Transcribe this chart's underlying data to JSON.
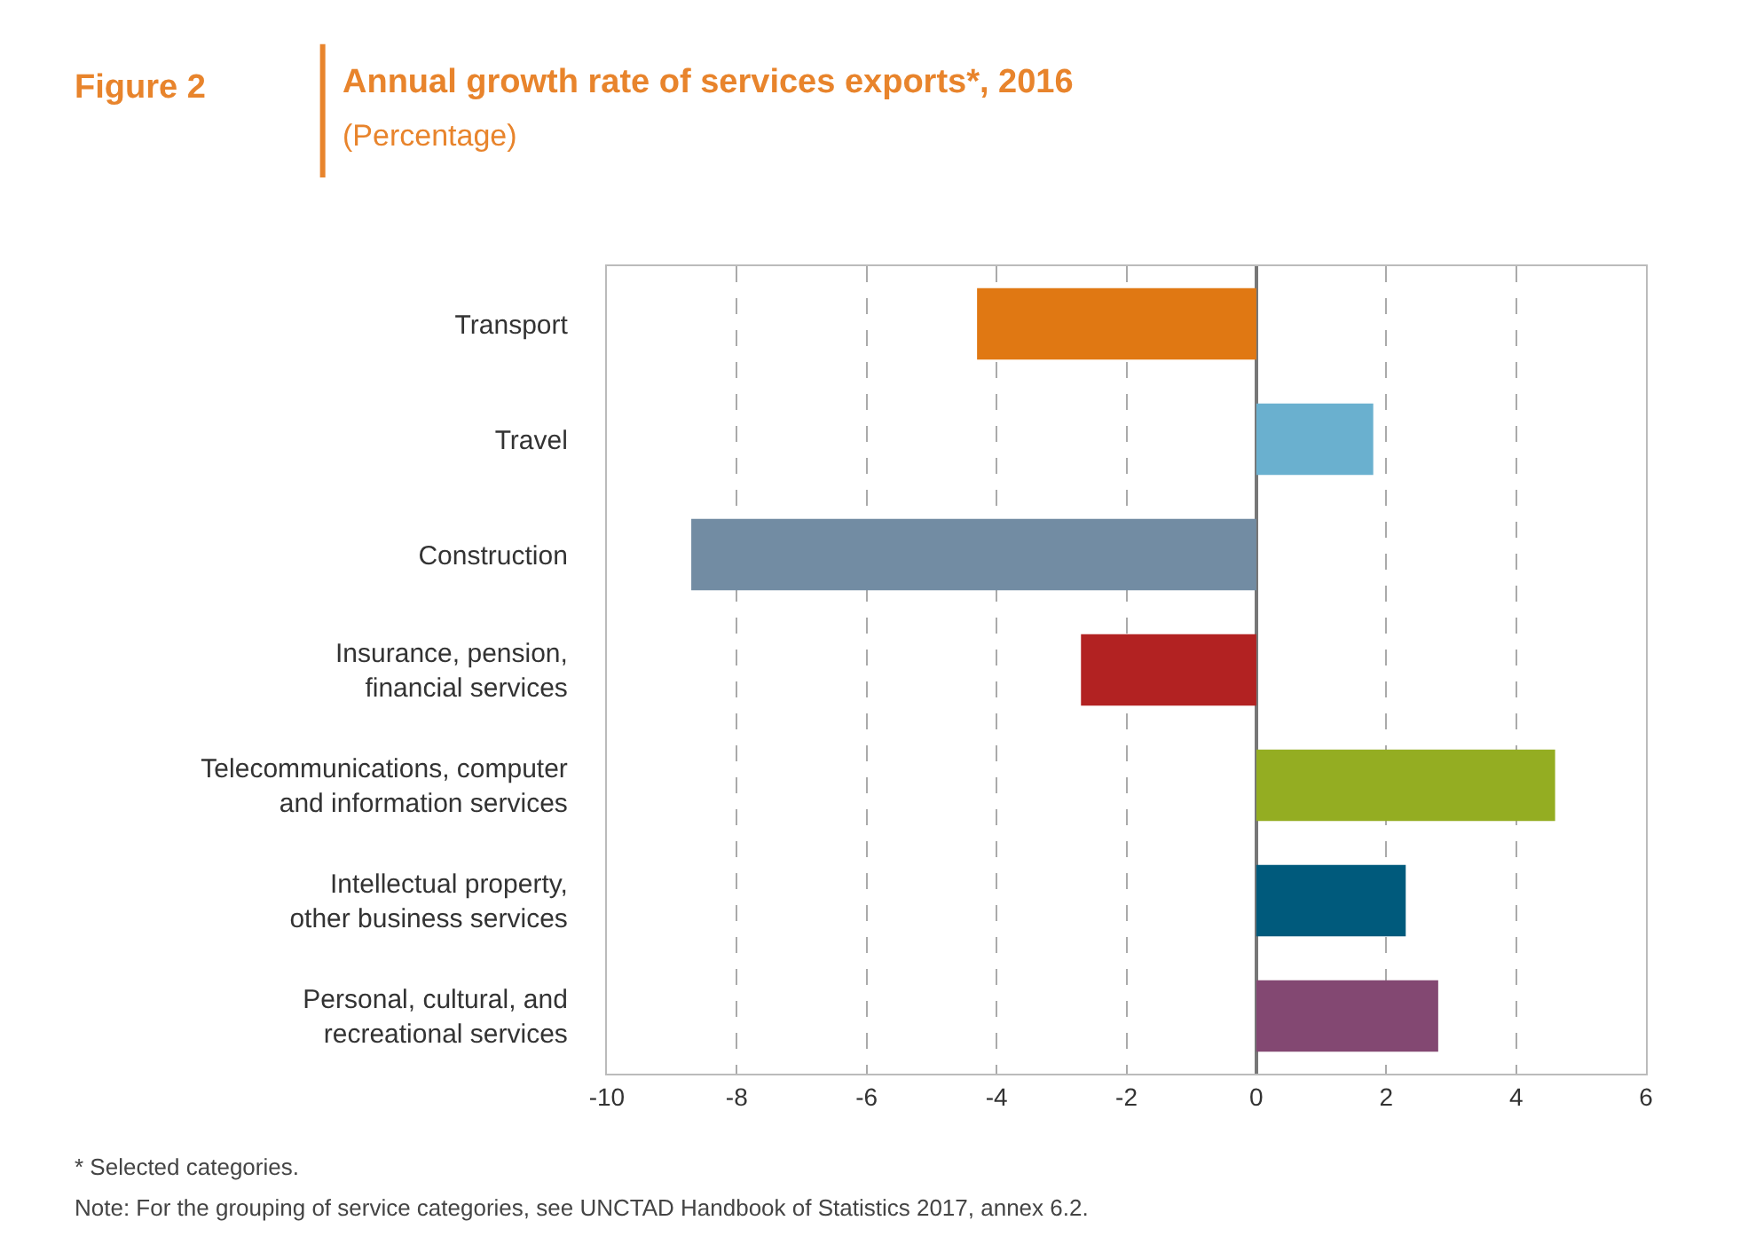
{
  "chart_data": {
    "type": "bar",
    "orientation": "horizontal",
    "title": "Annual growth rate of services exports*, 2016",
    "subtitle": "(Percentage)",
    "categories": [
      "Transport",
      "Travel",
      "Construction",
      "Insurance, pension,\nfinancial services",
      "Telecommunications, computer\nand information services",
      "Intellectual property,\nother business services",
      "Personal, cultural, and\nrecreational services"
    ],
    "values": [
      -4.3,
      1.8,
      -8.7,
      -2.7,
      4.6,
      2.3,
      2.8
    ],
    "colors": [
      "#e07813",
      "#6ab0cf",
      "#728ca3",
      "#b22222",
      "#94ad22",
      "#005a7c",
      "#834872"
    ],
    "xlim": [
      -10,
      6
    ],
    "xticks": [
      -10,
      -8,
      -6,
      -4,
      -2,
      0,
      2,
      4,
      6
    ],
    "grid": "x",
    "annotations": [
      "Figure 2",
      "* Selected categories.",
      "Note: For the grouping of service categories, see UNCTAD Handbook of Statistics 2017, annex 6.2."
    ]
  }
}
